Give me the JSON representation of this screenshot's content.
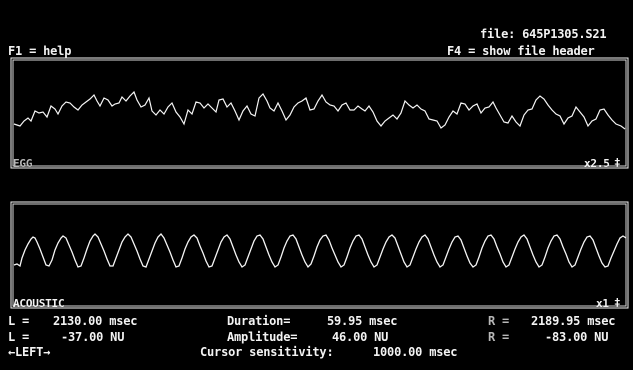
{
  "header": {
    "file_label": "file: 645P1305.S21",
    "help_hint": "F1 = help",
    "header_hint": "F4 = show file header"
  },
  "channels": [
    {
      "name": "EGG",
      "scale": "x2.5",
      "scale_arrow": "‡"
    },
    {
      "name": "ACOUSTIC",
      "scale": "x1",
      "scale_arrow": "‡"
    }
  ],
  "status": {
    "left_time_label": "L =",
    "left_time_value": "2130.00 msec",
    "left_amp_label": "L =",
    "left_amp_value": "-37.00 NU",
    "duration_label": "Duration=",
    "duration_value": "59.95 msec",
    "amplitude_label": "Amplitude=",
    "amplitude_value": "46.00 NU",
    "right_time_label": "R =",
    "right_time_value": "2189.95 msec",
    "right_amp_label": "R =",
    "right_amp_value": "-83.00 NU",
    "cursor_nav": "←LEFT→",
    "sensitivity_label": "Cursor sensitivity:",
    "sensitivity_value": "1000.00 msec"
  },
  "colors": {
    "background": "#000000",
    "text": "#f3f3f3",
    "dim_text": "#b7b7b7",
    "trace": "#f5f5f5"
  }
}
